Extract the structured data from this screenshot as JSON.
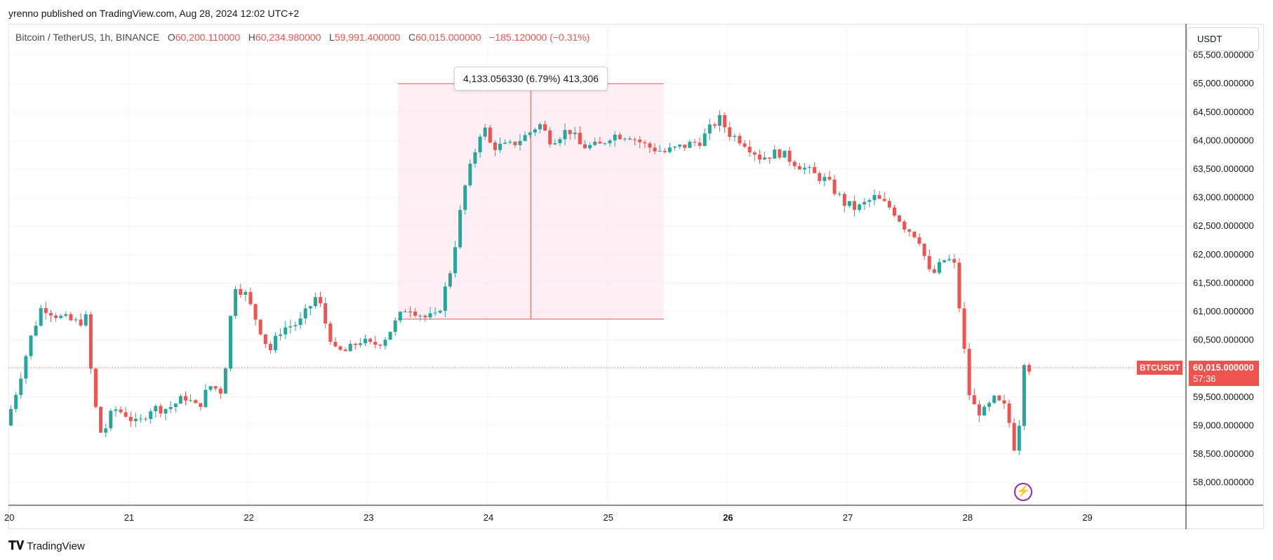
{
  "header": {
    "published": "yrenno published on TradingView.com, Aug 28, 2024 12:02 UTC+2"
  },
  "symbol": {
    "name": "Bitcoin / TetherUS, 1h, BINANCE",
    "o_label": "O",
    "o_value": "60,200.110000",
    "h_label": "H",
    "h_value": "60,234.980000",
    "l_label": "L",
    "l_value": "59,991.400000",
    "c_label": "C",
    "c_value": "60,015.000000",
    "change": "−185.120000 (−0.31%)"
  },
  "currency_button": "USDT",
  "measure": {
    "label": "4,133.056330 (6.79%) 413,306",
    "from_price": 60867,
    "to_price": 65000,
    "from_time": 23.25,
    "to_time": 25.47
  },
  "last_price": {
    "symbol": "BTCUSDT",
    "price": "60,015.000000",
    "countdown": "57:36",
    "value": 60015
  },
  "footer": {
    "logo_text": "TradingView"
  },
  "colors": {
    "up": "#26a69a",
    "down": "#ef5350",
    "measure_fill": "#fce4ec",
    "measure_line": "#ef5350",
    "grid": "#f0f3fa",
    "bolt": "#9c27b0"
  },
  "chart_data": {
    "type": "candlestick",
    "x_ticks": [
      "20",
      "21",
      "22",
      "23",
      "24",
      "25",
      "26",
      "27",
      "28",
      "29"
    ],
    "y_ticks": [
      "58,000.000000",
      "58,500.000000",
      "59,000.000000",
      "59,500.000000",
      "60,500.000000",
      "61,000.000000",
      "61,500.000000",
      "62,000.000000",
      "62,500.000000",
      "63,000.000000",
      "63,500.000000",
      "64,000.000000",
      "64,500.000000",
      "65,000.000000",
      "65,500.000000"
    ],
    "ylim": [
      57600,
      66050
    ],
    "xlim": [
      20.0,
      29.83
    ],
    "grid": true,
    "anchors": [
      [
        20.0,
        59000
      ],
      [
        20.1,
        59700
      ],
      [
        20.2,
        60500
      ],
      [
        20.3,
        61100
      ],
      [
        20.45,
        60900
      ],
      [
        20.6,
        60800
      ],
      [
        20.68,
        60900
      ],
      [
        20.72,
        59600
      ],
      [
        20.8,
        58800
      ],
      [
        20.9,
        59300
      ],
      [
        21.0,
        59200
      ],
      [
        21.1,
        59000
      ],
      [
        21.2,
        59300
      ],
      [
        21.35,
        59300
      ],
      [
        21.5,
        59500
      ],
      [
        21.6,
        59300
      ],
      [
        21.7,
        59700
      ],
      [
        21.8,
        59600
      ],
      [
        21.85,
        60300
      ],
      [
        21.9,
        61500
      ],
      [
        22.0,
        61300
      ],
      [
        22.1,
        60800
      ],
      [
        22.2,
        60300
      ],
      [
        22.3,
        60700
      ],
      [
        22.45,
        60800
      ],
      [
        22.6,
        61300
      ],
      [
        22.65,
        60900
      ],
      [
        22.75,
        60300
      ],
      [
        22.85,
        60300
      ],
      [
        22.95,
        60500
      ],
      [
        23.05,
        60400
      ],
      [
        23.15,
        60500
      ],
      [
        23.25,
        60800
      ],
      [
        23.35,
        61100
      ],
      [
        23.5,
        60900
      ],
      [
        23.6,
        60900
      ],
      [
        23.72,
        61800
      ],
      [
        23.82,
        63100
      ],
      [
        23.9,
        63700
      ],
      [
        23.98,
        64300
      ],
      [
        24.05,
        63900
      ],
      [
        24.2,
        63900
      ],
      [
        24.35,
        64100
      ],
      [
        24.45,
        64300
      ],
      [
        24.55,
        64000
      ],
      [
        24.7,
        64200
      ],
      [
        24.8,
        63900
      ],
      [
        24.95,
        63900
      ],
      [
        25.05,
        64100
      ],
      [
        25.2,
        64100
      ],
      [
        25.35,
        63900
      ],
      [
        25.5,
        63800
      ],
      [
        25.65,
        63900
      ],
      [
        25.8,
        64000
      ],
      [
        25.95,
        64400
      ],
      [
        26.05,
        64100
      ],
      [
        26.15,
        64000
      ],
      [
        26.3,
        63700
      ],
      [
        26.45,
        63800
      ],
      [
        26.6,
        63600
      ],
      [
        26.75,
        63400
      ],
      [
        26.85,
        63300
      ],
      [
        27.0,
        62900
      ],
      [
        27.1,
        62800
      ],
      [
        27.25,
        63000
      ],
      [
        27.4,
        62800
      ],
      [
        27.5,
        62500
      ],
      [
        27.62,
        62300
      ],
      [
        27.72,
        61600
      ],
      [
        27.85,
        61950
      ],
      [
        27.92,
        61800
      ],
      [
        28.0,
        60300
      ],
      [
        28.05,
        59400
      ],
      [
        28.15,
        59200
      ],
      [
        28.25,
        59450
      ],
      [
        28.35,
        59300
      ],
      [
        28.42,
        58600
      ],
      [
        28.47,
        59200
      ],
      [
        28.5,
        60150
      ],
      [
        28.53,
        60015
      ]
    ]
  }
}
